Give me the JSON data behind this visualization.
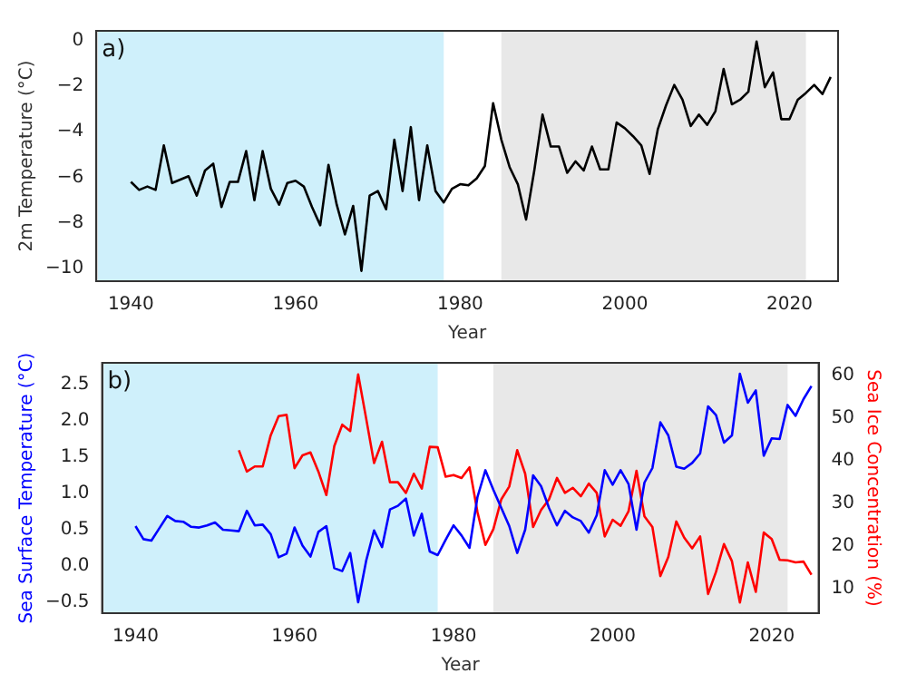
{
  "chart_data": [
    {
      "type": "line",
      "annotations": [
        "a)"
      ],
      "xlabel": "Year",
      "ylabel": "2m Temperature (°C)",
      "xlim": [
        1935.8,
        2025.9
      ],
      "xticks": [
        1940,
        1960,
        1980,
        2000,
        2020
      ],
      "ylim": [
        -10.55,
        0.42
      ],
      "yticks": [
        {
          "value": -10,
          "label": "−10"
        },
        {
          "value": -8,
          "label": "−8"
        },
        {
          "value": -6,
          "label": "−6"
        },
        {
          "value": -4,
          "label": "−4"
        },
        {
          "value": -2,
          "label": "−2"
        },
        0
      ],
      "grid": false,
      "legend": false,
      "marker": "none",
      "line_style": "solid",
      "bands": [
        {
          "axis": "x",
          "from": 1936,
          "to": 1978,
          "color": "#cff0fb"
        },
        {
          "axis": "x",
          "from": 1985,
          "to": 2022,
          "color": "#e8e8e8"
        }
      ],
      "x": [
        1940,
        1941,
        1942,
        1943,
        1944,
        1945,
        1946,
        1947,
        1948,
        1949,
        1950,
        1951,
        1952,
        1953,
        1954,
        1955,
        1956,
        1957,
        1958,
        1959,
        1960,
        1961,
        1962,
        1963,
        1964,
        1965,
        1966,
        1967,
        1968,
        1969,
        1970,
        1971,
        1972,
        1973,
        1974,
        1975,
        1976,
        1977,
        1978,
        1979,
        1980,
        1981,
        1982,
        1983,
        1984,
        1985,
        1986,
        1987,
        1988,
        1989,
        1990,
        1991,
        1992,
        1993,
        1994,
        1995,
        1996,
        1997,
        1998,
        1999,
        2000,
        2001,
        2002,
        2003,
        2004,
        2005,
        2006,
        2007,
        2008,
        2009,
        2010,
        2011,
        2012,
        2013,
        2014,
        2015,
        2016,
        2017,
        2018,
        2019,
        2020,
        2021,
        2022,
        2023,
        2024,
        2025
      ],
      "series": [
        {
          "color": "#000000",
          "values": [
            -6.2,
            -6.55,
            -6.4,
            -6.55,
            -4.6,
            -6.25,
            -6.1,
            -5.95,
            -6.8,
            -5.7,
            -5.4,
            -7.3,
            -6.2,
            -6.2,
            -4.85,
            -7.0,
            -4.85,
            -6.5,
            -7.2,
            -6.25,
            -6.15,
            -6.4,
            -7.3,
            -8.1,
            -5.45,
            -7.2,
            -8.5,
            -7.25,
            -10.1,
            -6.8,
            -6.6,
            -7.4,
            -4.35,
            -6.6,
            -3.8,
            -7.0,
            -4.6,
            -6.6,
            -7.1,
            -6.5,
            -6.3,
            -6.35,
            -6.05,
            -5.5,
            -2.75,
            -4.35,
            -5.55,
            -6.3,
            -7.85,
            -5.7,
            -3.25,
            -4.65,
            -4.65,
            -5.8,
            -5.3,
            -5.7,
            -4.65,
            -5.65,
            -5.65,
            -3.6,
            -3.85,
            -4.2,
            -4.6,
            -5.85,
            -3.9,
            -2.85,
            -1.95,
            -2.6,
            -3.75,
            -3.25,
            -3.7,
            -3.1,
            -1.25,
            -2.8,
            -2.6,
            -2.25,
            -0.05,
            -2.05,
            -1.4,
            -3.45,
            -3.45,
            -2.6,
            -2.3,
            -1.95,
            -2.35,
            -1.6
          ]
        }
      ]
    },
    {
      "type": "line",
      "annotations": [
        "b)"
      ],
      "xlabel": "Year",
      "ylabel": "Sea Surface Temperature (°C)",
      "y2label": "Sea Ice Concentration (%)",
      "xlim": [
        1935.8,
        2025.9
      ],
      "xticks": [
        1940,
        1960,
        1980,
        2000,
        2020
      ],
      "ylim": [
        -0.65,
        2.8
      ],
      "yticks": [
        {
          "value": -0.5,
          "label": "−0.5"
        },
        {
          "value": 0,
          "label": "0.0"
        },
        0.5,
        {
          "value": 1,
          "label": "1.0"
        },
        1.5,
        {
          "value": 2,
          "label": "2.0"
        },
        2.5
      ],
      "y2lim": [
        4.3,
        63
      ],
      "y2ticks": [
        10,
        20,
        30,
        40,
        50,
        60
      ],
      "grid": false,
      "legend": false,
      "marker": "none",
      "line_style": "solid",
      "bands": [
        {
          "axis": "x",
          "from": 1936,
          "to": 1978,
          "color": "#cff0fb"
        },
        {
          "axis": "x",
          "from": 1985,
          "to": 2022,
          "color": "#e8e8e8"
        }
      ],
      "x": [
        1940,
        1941,
        1942,
        1943,
        1944,
        1945,
        1946,
        1947,
        1948,
        1949,
        1950,
        1951,
        1952,
        1953,
        1954,
        1955,
        1956,
        1957,
        1958,
        1959,
        1960,
        1961,
        1962,
        1963,
        1964,
        1965,
        1966,
        1967,
        1968,
        1969,
        1970,
        1971,
        1972,
        1973,
        1974,
        1975,
        1976,
        1977,
        1978,
        1979,
        1980,
        1981,
        1982,
        1983,
        1984,
        1985,
        1986,
        1987,
        1988,
        1989,
        1990,
        1991,
        1992,
        1993,
        1994,
        1995,
        1996,
        1997,
        1998,
        1999,
        2000,
        2001,
        2002,
        2003,
        2004,
        2005,
        2006,
        2007,
        2008,
        2009,
        2010,
        2011,
        2012,
        2013,
        2014,
        2015,
        2016,
        2017,
        2018,
        2019,
        2020,
        2021,
        2022,
        2023,
        2024,
        2025
      ],
      "series": [
        {
          "color": "#0000ff",
          "values": [
            0.55,
            0.37,
            0.35,
            0.52,
            0.69,
            0.62,
            0.61,
            0.54,
            0.53,
            0.56,
            0.6,
            0.5,
            0.49,
            0.48,
            0.76,
            0.56,
            0.57,
            0.44,
            0.12,
            0.17,
            0.53,
            0.28,
            0.13,
            0.47,
            0.55,
            -0.03,
            -0.07,
            0.18,
            -0.5,
            0.07,
            0.49,
            0.26,
            0.78,
            0.83,
            0.93,
            0.42,
            0.72,
            0.2,
            0.15,
            0.36,
            0.56,
            0.42,
            0.25,
            0.95,
            1.32,
            1.05,
            0.8,
            0.55,
            0.18,
            0.5,
            1.25,
            1.1,
            0.8,
            0.56,
            0.76,
            0.67,
            0.62,
            0.46,
            0.7,
            1.32,
            1.12,
            1.32,
            1.13,
            0.5,
            1.15,
            1.35,
            1.98,
            1.8,
            1.37,
            1.34,
            1.42,
            1.55,
            2.2,
            2.08,
            1.7,
            1.8,
            2.65,
            2.25,
            2.42,
            1.52,
            1.76,
            1.75,
            2.22,
            2.07,
            2.3,
            2.48
          ]
        },
        {
          "color": "#ff0000",
          "axis": "y2",
          "x": [
            1953,
            1954,
            1955,
            1956,
            1957,
            1958,
            1959,
            1960,
            1961,
            1962,
            1963,
            1964,
            1965,
            1966,
            1967,
            1968,
            1969,
            1970,
            1971,
            1972,
            1973,
            1974,
            1975,
            1976,
            1977,
            1978,
            1979,
            1980,
            1981,
            1982,
            1983,
            1984,
            1985,
            1986,
            1987,
            1988,
            1989,
            1990,
            1991,
            1992,
            1993,
            1994,
            1995,
            1996,
            1997,
            1998,
            1999,
            2000,
            2001,
            2002,
            2003,
            2004,
            2005,
            2006,
            2007,
            2008,
            2009,
            2010,
            2011,
            2012,
            2013,
            2014,
            2015,
            2016,
            2017,
            2018,
            2019,
            2020,
            2021,
            2022,
            2023,
            2024,
            2025
          ],
          "values": [
            42.5,
            37.5,
            38.7,
            38.7,
            46,
            50.5,
            50.8,
            38.3,
            41.3,
            42,
            37.5,
            32,
            43.5,
            48.5,
            47,
            60.3,
            50,
            39.5,
            44.5,
            35,
            35,
            32.5,
            37,
            33.5,
            43.3,
            43.2,
            36.3,
            36.7,
            36,
            38.5,
            28,
            20.3,
            24,
            31,
            34,
            42.5,
            37,
            24.5,
            28.5,
            31,
            36,
            32.5,
            33.7,
            31.7,
            34.7,
            32.5,
            22.3,
            26.2,
            24.8,
            28.2,
            37.7,
            27,
            24.5,
            13,
            17.5,
            25.8,
            22,
            19.5,
            22.3,
            8.8,
            14,
            20.5,
            16.5,
            6.8,
            16.2,
            9.3,
            23.2,
            21.7,
            16.8,
            16.7,
            16.2,
            16.4,
            13.3
          ]
        }
      ]
    }
  ]
}
